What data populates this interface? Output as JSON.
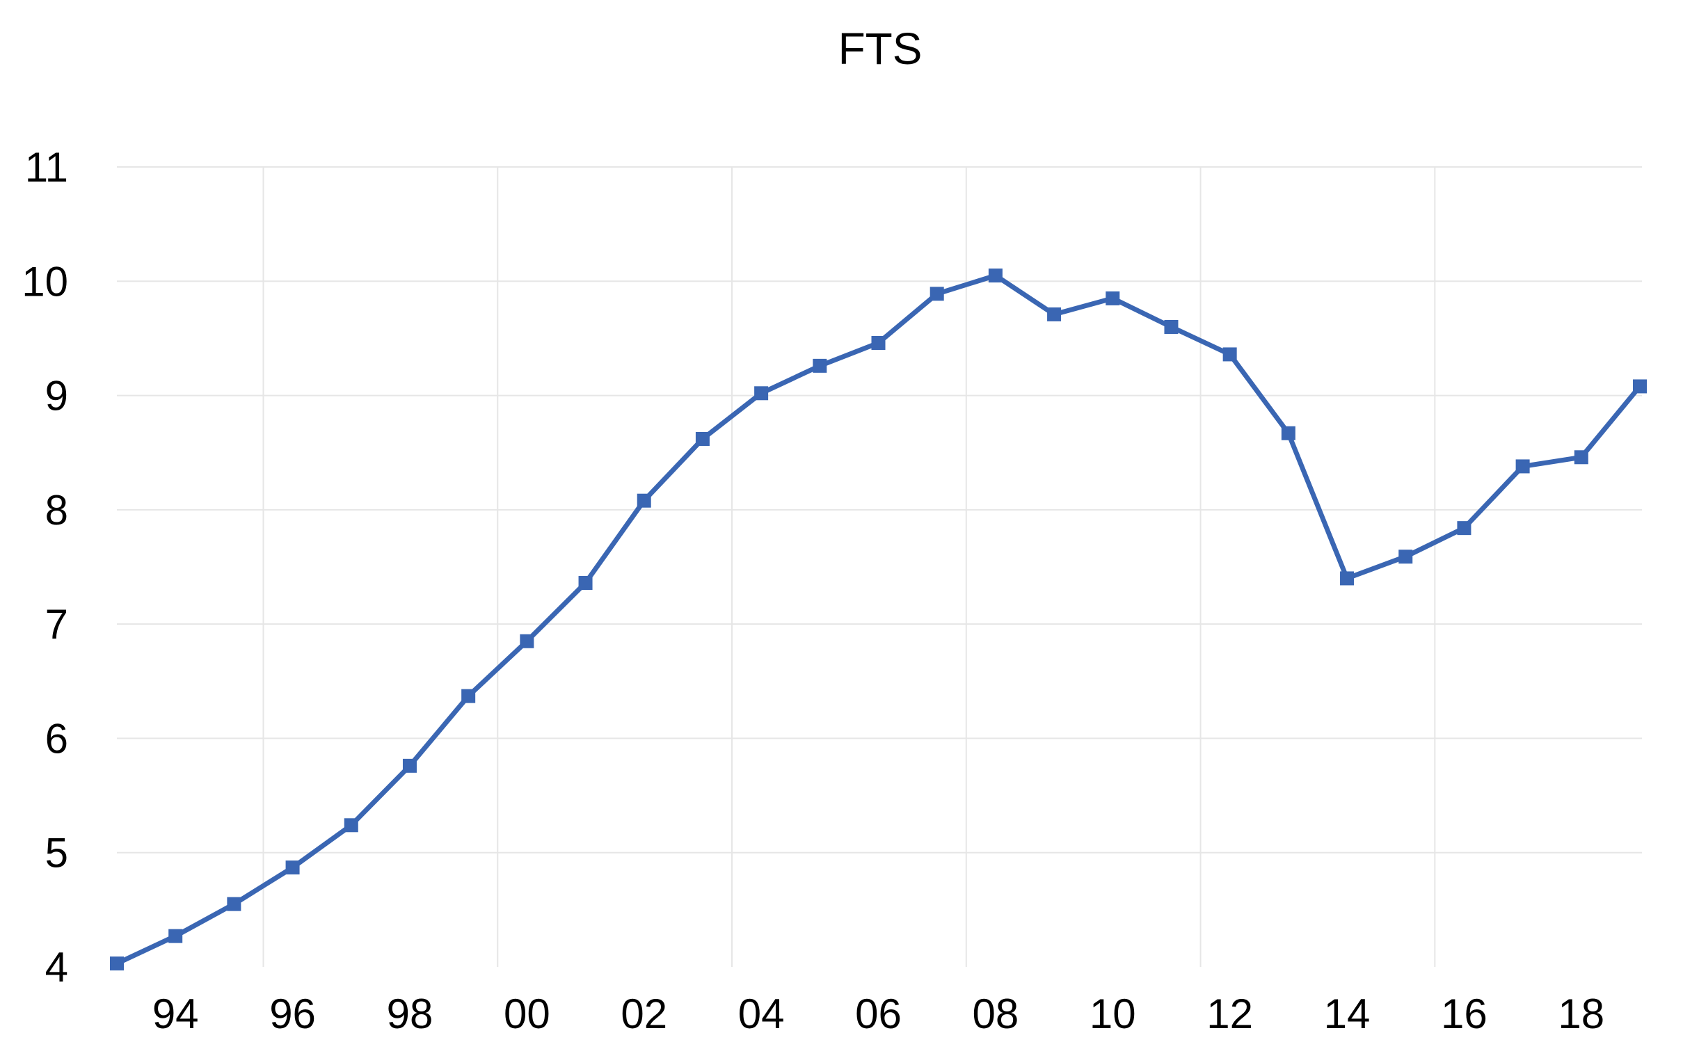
{
  "chart_data": {
    "type": "line",
    "title": "FTS",
    "xlabel": "",
    "ylabel": "",
    "ylim": [
      4,
      11
    ],
    "yticks": [
      "4",
      "5",
      "6",
      "7",
      "8",
      "9",
      "10",
      "11"
    ],
    "xlim": [
      1993,
      2019
    ],
    "xticks": [
      {
        "label": "94",
        "x": 1994
      },
      {
        "label": "96",
        "x": 1996
      },
      {
        "label": "98",
        "x": 1998
      },
      {
        "label": "00",
        "x": 2000
      },
      {
        "label": "02",
        "x": 2002
      },
      {
        "label": "04",
        "x": 2004
      },
      {
        "label": "06",
        "x": 2006
      },
      {
        "label": "08",
        "x": 2008
      },
      {
        "label": "10",
        "x": 2010
      },
      {
        "label": "12",
        "x": 2012
      },
      {
        "label": "14",
        "x": 2014
      },
      {
        "label": "16",
        "x": 2016
      },
      {
        "label": "18",
        "x": 2018
      }
    ],
    "vertical_grid_x": [
      1995.5,
      1999.5,
      2003.5,
      2007.5,
      2011.5,
      2015.5
    ],
    "grid": true,
    "legend": "none",
    "series_color": "#3a66b3",
    "grid_color": "#e6e6e6",
    "series": [
      {
        "x": [
          1993,
          1994,
          1995,
          1996,
          1997,
          1998,
          1999,
          2000,
          2001,
          2002,
          2003,
          2004,
          2005,
          2006,
          2007,
          2008,
          2009,
          2010,
          2011,
          2012,
          2013,
          2014,
          2015,
          2016,
          2017,
          2018,
          2019
        ],
        "values": [
          4.03,
          4.27,
          4.55,
          4.87,
          5.24,
          5.76,
          6.37,
          6.85,
          7.36,
          8.08,
          8.62,
          9.02,
          9.26,
          9.46,
          9.89,
          10.05,
          9.71,
          9.85,
          9.6,
          9.36,
          8.67,
          7.4,
          7.59,
          7.84,
          8.38,
          8.46,
          9.08
        ]
      }
    ]
  }
}
